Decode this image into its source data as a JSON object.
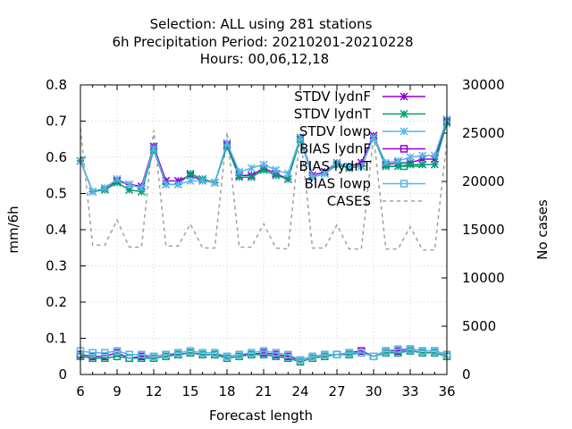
{
  "chart_data": {
    "type": "line",
    "title_lines": [
      "Selection: ALL using   281 stations",
      "6h Precipitation   Period: 20210201-20210228",
      "Hours:  00,06,12,18"
    ],
    "xlabel": "Forecast length",
    "ylabel": "mm/6h",
    "y2label": "No cases",
    "xlim": [
      6,
      36
    ],
    "ylim": [
      0,
      0.8
    ],
    "y2lim": [
      0,
      30000
    ],
    "xticks": [
      6,
      9,
      12,
      15,
      18,
      21,
      24,
      27,
      30,
      33,
      36
    ],
    "yticks": [
      0,
      0.1,
      0.2,
      0.3,
      0.4,
      0.5,
      0.6,
      0.7,
      0.8
    ],
    "ytick_labels": [
      "0",
      "0.1",
      "0.2",
      "0.3",
      "0.4",
      "0.5",
      "0.6",
      "0.7",
      "0.8"
    ],
    "y2ticks": [
      0,
      5000,
      10000,
      15000,
      20000,
      25000,
      30000
    ],
    "grid": true,
    "legend_position": "top-right",
    "x": [
      6,
      7,
      8,
      9,
      10,
      11,
      12,
      13,
      14,
      15,
      16,
      17,
      18,
      19,
      20,
      21,
      22,
      23,
      24,
      25,
      26,
      27,
      28,
      29,
      30,
      31,
      32,
      33,
      34,
      35,
      36
    ],
    "series": [
      {
        "name": "STDV lydnF",
        "color": "#9400d3",
        "marker": "x-star",
        "axis": "y",
        "values": [
          0.59,
          0.505,
          0.515,
          0.535,
          0.525,
          0.52,
          0.63,
          0.535,
          0.535,
          0.55,
          0.535,
          0.53,
          0.635,
          0.55,
          0.55,
          0.57,
          0.555,
          0.54,
          0.655,
          0.55,
          0.56,
          0.585,
          0.575,
          0.585,
          0.66,
          0.58,
          0.585,
          0.585,
          0.595,
          0.595,
          0.7
        ]
      },
      {
        "name": "STDV lydnT",
        "color": "#009e73",
        "marker": "x-star",
        "axis": "y",
        "values": [
          0.59,
          0.505,
          0.51,
          0.53,
          0.51,
          0.505,
          0.62,
          0.525,
          0.525,
          0.555,
          0.54,
          0.53,
          0.63,
          0.545,
          0.545,
          0.565,
          0.55,
          0.54,
          0.65,
          0.545,
          0.555,
          0.58,
          0.57,
          0.575,
          0.655,
          0.575,
          0.575,
          0.58,
          0.58,
          0.58,
          0.695
        ]
      },
      {
        "name": "STDV lowp",
        "color": "#56b4e9",
        "marker": "star",
        "axis": "y",
        "values": [
          0.59,
          0.505,
          0.515,
          0.54,
          0.525,
          0.515,
          0.625,
          0.525,
          0.525,
          0.535,
          0.535,
          0.53,
          0.64,
          0.56,
          0.57,
          0.58,
          0.565,
          0.555,
          0.655,
          0.545,
          0.555,
          0.585,
          0.575,
          0.575,
          0.655,
          0.585,
          0.59,
          0.6,
          0.605,
          0.605,
          0.705
        ]
      },
      {
        "name": "BIAS lydnF",
        "color": "#9400d3",
        "marker": "square",
        "axis": "y",
        "values": [
          0.055,
          0.05,
          0.05,
          0.06,
          0.045,
          0.05,
          0.05,
          0.055,
          0.055,
          0.06,
          0.055,
          0.055,
          0.05,
          0.055,
          0.055,
          0.06,
          0.055,
          0.05,
          0.04,
          0.05,
          0.055,
          0.055,
          0.06,
          0.065,
          0.05,
          0.065,
          0.065,
          0.07,
          0.065,
          0.065,
          0.055
        ]
      },
      {
        "name": "BIAS lydnT",
        "color": "#009e73",
        "marker": "square",
        "axis": "y",
        "values": [
          0.05,
          0.045,
          0.045,
          0.05,
          0.045,
          0.045,
          0.045,
          0.05,
          0.055,
          0.06,
          0.055,
          0.055,
          0.045,
          0.05,
          0.055,
          0.055,
          0.05,
          0.045,
          0.035,
          0.045,
          0.05,
          0.055,
          0.055,
          0.06,
          0.05,
          0.06,
          0.06,
          0.065,
          0.06,
          0.06,
          0.05
        ]
      },
      {
        "name": "BIAS lowp",
        "color": "#56b4e9",
        "marker": "square",
        "axis": "y",
        "values": [
          0.065,
          0.06,
          0.06,
          0.065,
          0.055,
          0.055,
          0.05,
          0.055,
          0.06,
          0.065,
          0.06,
          0.06,
          0.05,
          0.055,
          0.06,
          0.065,
          0.06,
          0.055,
          0.04,
          0.05,
          0.055,
          0.055,
          0.06,
          0.06,
          0.05,
          0.065,
          0.07,
          0.07,
          0.065,
          0.065,
          0.055
        ]
      },
      {
        "name": "CASES",
        "color": "#a0a0a0",
        "marker": "none",
        "dash": true,
        "axis": "y2",
        "values": [
          25500,
          13400,
          13400,
          16000,
          13200,
          13200,
          25300,
          13300,
          13300,
          15600,
          13100,
          13100,
          25100,
          13200,
          13200,
          15600,
          13100,
          13000,
          25000,
          13100,
          13100,
          15500,
          13000,
          13000,
          24800,
          13000,
          13000,
          15300,
          12900,
          12900,
          24200
        ]
      }
    ]
  }
}
